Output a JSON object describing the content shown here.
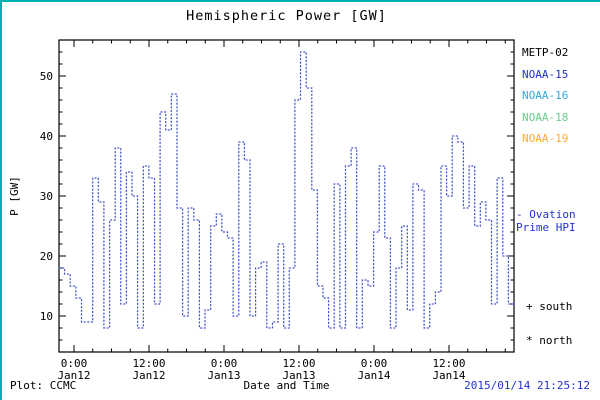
{
  "window": {
    "border_color": "#00b0b0",
    "background": "#ffffff"
  },
  "chart_data": {
    "type": "line",
    "subtype": "dotted-step",
    "title": "Hemispheric Power [GW]",
    "xlabel": "Date and Time",
    "ylabel": "P [GW]",
    "series_name": "Ovation Prime HPI",
    "line_color": "#4455cc",
    "ylim": [
      4,
      56
    ],
    "yticks": [
      10,
      20,
      30,
      40,
      50
    ],
    "y_minor_step": 2,
    "t_start_hours": -2.4,
    "t_end_hours": 70.4,
    "x_minor_step_hours": 3,
    "xticks": [
      {
        "t": 0,
        "top": "0:00",
        "bottom": "Jan12"
      },
      {
        "t": 12,
        "top": "12:00",
        "bottom": "Jan12"
      },
      {
        "t": 24,
        "top": "0:00",
        "bottom": "Jan13"
      },
      {
        "t": 36,
        "top": "12:00",
        "bottom": "Jan13"
      },
      {
        "t": 48,
        "top": "0:00",
        "bottom": "Jan14"
      },
      {
        "t": 60,
        "top": "12:00",
        "bottom": "Jan14"
      }
    ],
    "values_note": "Hemispheric power in GW, uniform steps spanning t_start_hours to t_end_hours (hours relative to Jan12 00:00)",
    "values": [
      18,
      17,
      15,
      13,
      9,
      9,
      33,
      29,
      8,
      26,
      38,
      12,
      34,
      30,
      8,
      35,
      33,
      12,
      44,
      41,
      47,
      28,
      10,
      28,
      26,
      8,
      11,
      25,
      27,
      24,
      23,
      10,
      39,
      36,
      10,
      18,
      19,
      8,
      9,
      22,
      8,
      18,
      46,
      54,
      48,
      31,
      15,
      13,
      8,
      32,
      8,
      35,
      38,
      8,
      16,
      15,
      24,
      35,
      23,
      8,
      18,
      25,
      11,
      32,
      31,
      8,
      12,
      14,
      35,
      30,
      40,
      39,
      28,
      35,
      25,
      29,
      26,
      12,
      33,
      20,
      12
    ]
  },
  "legend": {
    "items": [
      {
        "label": "METP-02",
        "color": "#000000"
      },
      {
        "label": "NOAA-15",
        "color": "#2233cc"
      },
      {
        "label": "NOAA-16",
        "color": "#33aadd"
      },
      {
        "label": "NOAA-18",
        "color": "#66cc88"
      },
      {
        "label": "NOAA-19",
        "color": "#ffaa33"
      }
    ]
  },
  "annotations": {
    "ovation_line1": "- Ovation",
    "ovation_line2": "Prime HPI",
    "ovation_color": "#2233cc",
    "south": "+ south",
    "north": "* north"
  },
  "footer": {
    "plot_source": "Plot: CCMC",
    "timestamp": "2015/01/14 21:25:12",
    "timestamp_color": "#2233cc"
  }
}
